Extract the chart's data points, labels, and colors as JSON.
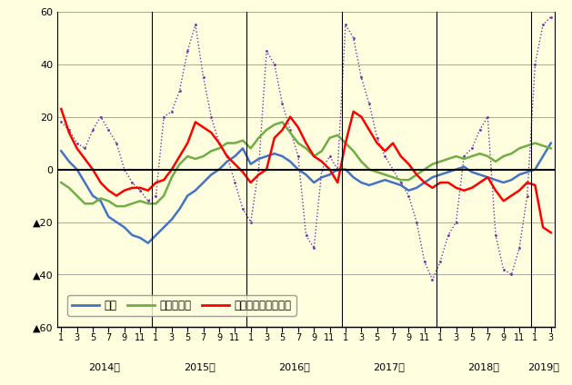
{
  "plot_bg_color": "#FFFFE0",
  "ylim": [
    -60,
    60
  ],
  "years": [
    "2014年",
    "2015年",
    "2016年",
    "2017年",
    "2018年",
    "2019年"
  ],
  "months_per_year": [
    12,
    12,
    12,
    12,
    12,
    3
  ],
  "line_colors": {
    "jika": "#4472C4",
    "bunjo_ikko": "#70AD47",
    "bunjo_mansion": "#FF0000",
    "chintai": "#7030A0"
  },
  "jika": [
    7,
    3,
    0,
    -5,
    -10,
    -12,
    -18,
    -20,
    -22,
    -25,
    -26,
    -28,
    -25,
    -22,
    -19,
    -15,
    -10,
    -8,
    -5,
    -2,
    0,
    3,
    5,
    8,
    2,
    4,
    5,
    6,
    5,
    3,
    0,
    -2,
    -5,
    -3,
    -2,
    0,
    0,
    -3,
    -5,
    -6,
    -5,
    -4,
    -5,
    -6,
    -8,
    -7,
    -5,
    -3,
    -2,
    -1,
    0,
    1,
    -1,
    -2,
    -3,
    -4,
    -5,
    -4,
    -2,
    -1,
    0,
    5,
    10
  ],
  "bunjo_ikko": [
    -5,
    -7,
    -10,
    -13,
    -13,
    -11,
    -12,
    -14,
    -14,
    -13,
    -12,
    -13,
    -13,
    -10,
    -3,
    2,
    5,
    4,
    5,
    7,
    8,
    10,
    10,
    11,
    8,
    12,
    15,
    17,
    18,
    14,
    10,
    8,
    5,
    7,
    12,
    13,
    10,
    7,
    3,
    0,
    -1,
    -2,
    -3,
    -4,
    -4,
    -2,
    0,
    2,
    3,
    4,
    5,
    4,
    5,
    6,
    5,
    3,
    5,
    6,
    8,
    9,
    10,
    9,
    8
  ],
  "bunjo_mansion": [
    23,
    14,
    8,
    4,
    0,
    -5,
    -8,
    -10,
    -8,
    -7,
    -7,
    -8,
    -5,
    -4,
    0,
    5,
    10,
    18,
    16,
    14,
    10,
    5,
    2,
    -1,
    -5,
    -2,
    0,
    12,
    15,
    20,
    16,
    10,
    5,
    3,
    0,
    -5,
    10,
    22,
    20,
    15,
    10,
    7,
    10,
    5,
    2,
    -2,
    -5,
    -7,
    -5,
    -5,
    -7,
    -8,
    -7,
    -5,
    -3,
    -8,
    -12,
    -10,
    -8,
    -5,
    -6,
    -22,
    -24
  ],
  "chintai": [
    18,
    15,
    10,
    8,
    15,
    20,
    15,
    10,
    0,
    -5,
    -8,
    -12,
    -10,
    20,
    22,
    30,
    45,
    55,
    35,
    20,
    10,
    5,
    -5,
    -15,
    -20,
    0,
    45,
    40,
    25,
    15,
    5,
    -25,
    -30,
    0,
    5,
    0,
    55,
    50,
    35,
    25,
    12,
    5,
    0,
    -5,
    -10,
    -20,
    -35,
    -42,
    -35,
    -25,
    -20,
    5,
    8,
    15,
    20,
    -25,
    -38,
    -40,
    -30,
    -10,
    40,
    55,
    58
  ]
}
